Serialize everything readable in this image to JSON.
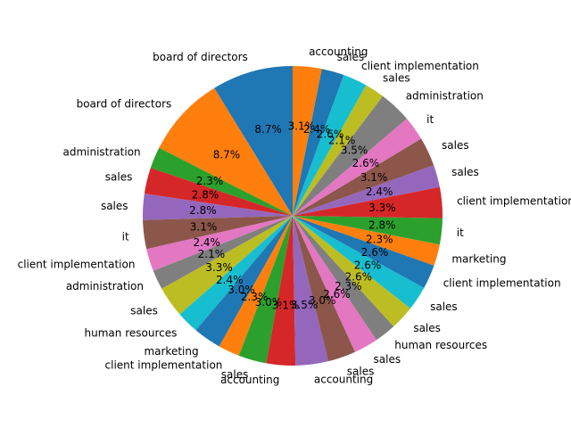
{
  "chart_data": {
    "type": "pie",
    "title": "",
    "start_angle_deg": 90,
    "direction": "counterclockwise",
    "palette": [
      "#1f77b4",
      "#ff7f0e",
      "#2ca02c",
      "#d62728",
      "#9467bd",
      "#8c564b",
      "#e377c2",
      "#7f7f7f",
      "#bcbd22",
      "#17becf"
    ],
    "slices": [
      {
        "label": "board of directors",
        "pct": 8.7,
        "pct_label": "8.7%"
      },
      {
        "label": "board of directors",
        "pct": 8.7,
        "pct_label": "8.7%"
      },
      {
        "label": "administration",
        "pct": 2.3,
        "pct_label": "2.3%"
      },
      {
        "label": "sales",
        "pct": 2.8,
        "pct_label": "2.8%"
      },
      {
        "label": "sales",
        "pct": 2.8,
        "pct_label": "2.8%"
      },
      {
        "label": "it",
        "pct": 3.1,
        "pct_label": "3.1%"
      },
      {
        "label": "client implementation",
        "pct": 2.4,
        "pct_label": "2.4%"
      },
      {
        "label": "administration",
        "pct": 2.1,
        "pct_label": "2.1%"
      },
      {
        "label": "sales",
        "pct": 3.3,
        "pct_label": "3.3%"
      },
      {
        "label": "human resources",
        "pct": 2.4,
        "pct_label": "2.4%"
      },
      {
        "label": "marketing",
        "pct": 3.0,
        "pct_label": "3.0%"
      },
      {
        "label": "client implementation",
        "pct": 2.3,
        "pct_label": "2.3%"
      },
      {
        "label": "sales",
        "pct": 3.0,
        "pct_label": "3.0%"
      },
      {
        "label": "accounting",
        "pct": 3.1,
        "pct_label": "3.1%"
      },
      {
        "label": "accounting",
        "pct": 3.5,
        "pct_label": "3.5%"
      },
      {
        "label": "sales",
        "pct": 3.0,
        "pct_label": "3.0%"
      },
      {
        "label": "sales",
        "pct": 2.6,
        "pct_label": "2.6%"
      },
      {
        "label": "human resources",
        "pct": 2.3,
        "pct_label": "2.3%"
      },
      {
        "label": "sales",
        "pct": 2.6,
        "pct_label": "2.6%"
      },
      {
        "label": "sales",
        "pct": 2.6,
        "pct_label": "2.6%"
      },
      {
        "label": "client implementation",
        "pct": 2.6,
        "pct_label": "2.6%"
      },
      {
        "label": "marketing",
        "pct": 2.3,
        "pct_label": "2.3%"
      },
      {
        "label": "it",
        "pct": 2.8,
        "pct_label": "2.8%"
      },
      {
        "label": "client implementation",
        "pct": 3.3,
        "pct_label": "3.3%"
      },
      {
        "label": "sales",
        "pct": 2.4,
        "pct_label": "2.4%"
      },
      {
        "label": "sales",
        "pct": 3.1,
        "pct_label": "3.1%"
      },
      {
        "label": "it",
        "pct": 2.6,
        "pct_label": "2.6%"
      },
      {
        "label": "administration",
        "pct": 3.5,
        "pct_label": "3.5%"
      },
      {
        "label": "sales",
        "pct": 2.1,
        "pct_label": "2.1%"
      },
      {
        "label": "client implementation",
        "pct": 2.6,
        "pct_label": "2.6%"
      },
      {
        "label": "sales",
        "pct": 2.4,
        "pct_label": "2.4%"
      },
      {
        "label": "accounting",
        "pct": 3.1,
        "pct_label": "3.1%"
      }
    ]
  }
}
